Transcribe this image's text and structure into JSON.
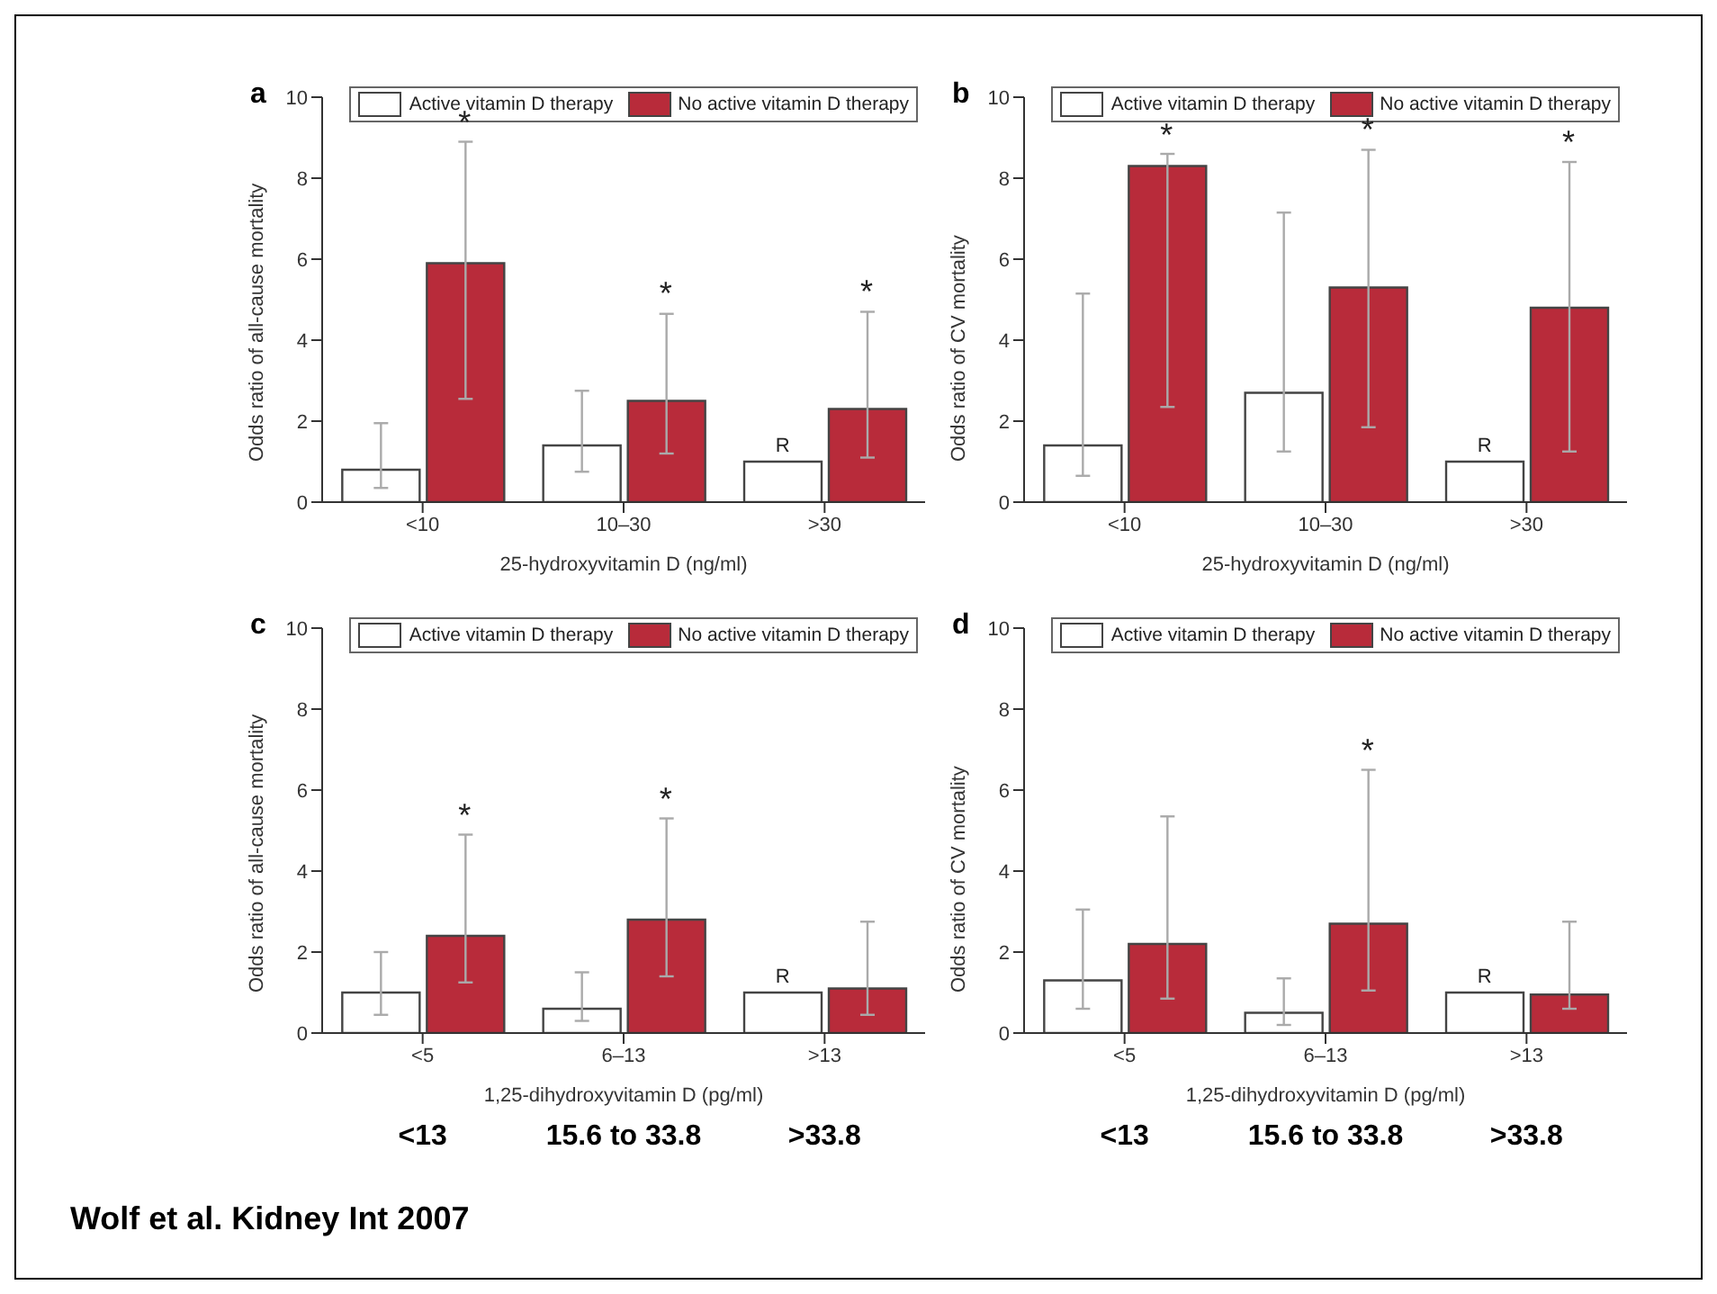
{
  "chart_data": [
    {
      "type": "bar",
      "title": "a",
      "xlabel": "25-hydroxyvitamin D (ng/ml)",
      "ylabel": "Odds ratio of all-cause mortality",
      "categories": [
        "<10",
        "10–30",
        ">30"
      ],
      "ylim": [
        0,
        10
      ],
      "yticks": [
        0,
        2,
        4,
        6,
        8,
        10
      ],
      "legend": "top right",
      "series": [
        {
          "name": "Active vitamin D therapy",
          "color": "#ffffff",
          "values": [
            0.8,
            1.4,
            1.0
          ],
          "errors": [
            [
              0.35,
              1.95
            ],
            [
              0.75,
              2.75
            ],
            null
          ],
          "value_labels": [
            null,
            null,
            "R"
          ]
        },
        {
          "name": "No active vitamin D therapy",
          "color": "#b82b3a",
          "values": [
            5.9,
            2.5,
            2.3
          ],
          "errors": [
            [
              2.55,
              8.9
            ],
            [
              1.2,
              4.65
            ],
            [
              1.1,
              4.7
            ]
          ],
          "value_labels": [
            null,
            "*",
            "*"
          ]
        }
      ],
      "annotations": [
        "*"
      ]
    },
    {
      "type": "bar",
      "title": "b",
      "xlabel": "25-hydroxyvitamin D (ng/ml)",
      "ylabel": "Odds ratio of CV mortality",
      "categories": [
        "<10",
        "10–30",
        ">30"
      ],
      "ylim": [
        0,
        10
      ],
      "yticks": [
        0,
        2,
        4,
        6,
        8,
        10
      ],
      "legend": "top right",
      "series": [
        {
          "name": "Active vitamin D therapy",
          "color": "#ffffff",
          "values": [
            1.4,
            2.7,
            1.0
          ],
          "errors": [
            [
              0.65,
              5.15
            ],
            [
              1.25,
              7.15
            ],
            null
          ],
          "value_labels": [
            null,
            null,
            "R"
          ]
        },
        {
          "name": "No active vitamin D therapy",
          "color": "#b82b3a",
          "values": [
            8.3,
            5.3,
            4.8
          ],
          "errors": [
            [
              2.35,
              8.6
            ],
            [
              1.85,
              8.7
            ],
            [
              1.25,
              8.4
            ]
          ],
          "value_labels": [
            "*",
            null,
            null
          ]
        }
      ],
      "annotations": [
        "*",
        "*"
      ]
    },
    {
      "type": "bar",
      "title": "c",
      "xlabel": "1,25-dihydroxyvitamin D (pg/ml)",
      "ylabel": "Odds ratio of all-cause mortality",
      "categories": [
        "<5",
        "6–13",
        ">13"
      ],
      "ylim": [
        0,
        10
      ],
      "yticks": [
        0,
        2,
        4,
        6,
        8,
        10
      ],
      "legend": "top right",
      "series": [
        {
          "name": "Active vitamin D therapy",
          "color": "#ffffff",
          "values": [
            1.0,
            0.6,
            1.0
          ],
          "errors": [
            [
              0.45,
              2.0
            ],
            [
              0.3,
              1.5
            ],
            null
          ],
          "value_labels": [
            null,
            null,
            "R"
          ]
        },
        {
          "name": "No active vitamin D therapy",
          "color": "#b82b3a",
          "values": [
            2.4,
            2.8,
            1.1
          ],
          "errors": [
            [
              1.25,
              4.9
            ],
            [
              1.4,
              5.3
            ],
            [
              0.45,
              2.75
            ]
          ],
          "value_labels": [
            "*",
            "*",
            null
          ]
        }
      ],
      "annotations": [
        "<13",
        "15.6 to 33.8",
        ">33.8"
      ]
    },
    {
      "type": "bar",
      "title": "d",
      "xlabel": "1,25-dihydroxyvitamin D (pg/ml)",
      "ylabel": "Odds ratio of CV mortality",
      "categories": [
        "<5",
        "6–13",
        ">13"
      ],
      "ylim": [
        0,
        10
      ],
      "yticks": [
        0,
        2,
        4,
        6,
        8,
        10
      ],
      "legend": "top right",
      "series": [
        {
          "name": "Active vitamin D therapy",
          "color": "#ffffff",
          "values": [
            1.3,
            0.5,
            1.0
          ],
          "errors": [
            [
              0.6,
              3.05
            ],
            [
              0.2,
              1.35
            ],
            null
          ],
          "value_labels": [
            null,
            null,
            "R"
          ]
        },
        {
          "name": "No active vitamin D therapy",
          "color": "#b82b3a",
          "values": [
            2.2,
            2.7,
            0.95
          ],
          "errors": [
            [
              0.85,
              5.35
            ],
            [
              1.05,
              6.5
            ],
            [
              0.6,
              2.75
            ]
          ]
        }
      ],
      "annotations": [
        "*",
        "<13",
        "15.6 to 33.8",
        ">33.8",
        "Wolf et al. Kidney Int 2007"
      ]
    }
  ]
}
